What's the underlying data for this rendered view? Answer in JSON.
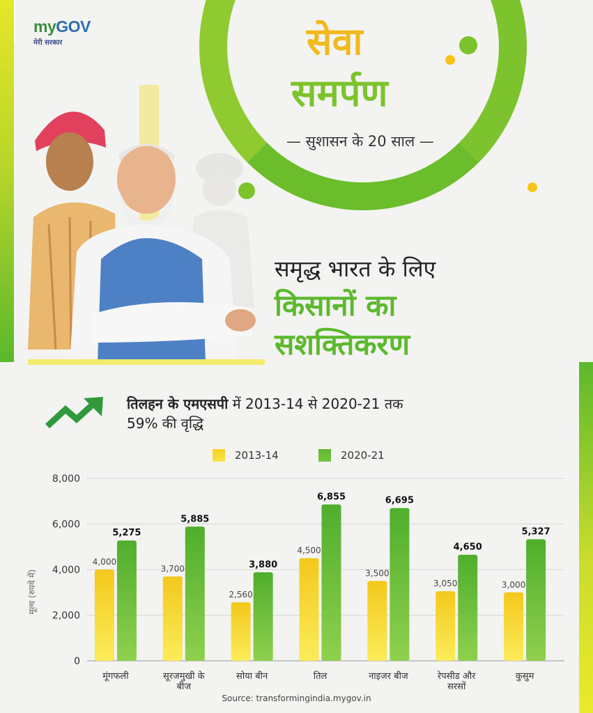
{
  "logo": {
    "my": "my",
    "gov": "GOV",
    "sub": "मेरी सरकार"
  },
  "hero": {
    "seva": "सेवा",
    "samarpan": "समर्पण",
    "tagline": "— सुशासन के 20 साल —"
  },
  "headline": {
    "line1": "समृद्ध भारत के लिए",
    "line2": "किसानों का",
    "line3": "सशक्तिकरण"
  },
  "stat": {
    "bold": "तिलहन के एमएसपी",
    "rest": " में 2013-14 से 2020-21 तक",
    "line2": "59% की वृद्धि"
  },
  "colors": {
    "green": "#7cc32e",
    "dark_green": "#5cb82c",
    "yellow": "#f6d223",
    "grid": "#d6d6d6"
  },
  "chart_data": {
    "type": "bar",
    "categories": [
      [
        "मूंगफली"
      ],
      [
        "सूरजमुखी के",
        "बीज"
      ],
      [
        "सोया बीन"
      ],
      [
        "तिल"
      ],
      [
        "नाइजर बीज"
      ],
      [
        "रेपसीड और",
        "सरसों"
      ],
      [
        "कुसुम"
      ]
    ],
    "series": [
      {
        "name": "2013-14",
        "values": [
          4000,
          3700,
          2560,
          4500,
          3500,
          3050,
          3000
        ],
        "labels": [
          "4,000",
          "3,700",
          "2,560",
          "4,500",
          "3,500",
          "3,050",
          "3,000"
        ]
      },
      {
        "name": "2020-21",
        "values": [
          5275,
          5885,
          3880,
          6855,
          6695,
          4650,
          5327
        ],
        "labels": [
          "5,275",
          "5,885",
          "3,880",
          "6,855",
          "6,695",
          "4,650",
          "5,327"
        ]
      }
    ],
    "ylabel": "मूल्य (रुपये में)",
    "ylim": [
      0,
      8000
    ],
    "yticks": [
      0,
      2000,
      4000,
      6000,
      8000
    ],
    "ytick_labels": [
      "0",
      "2,000",
      "4,000",
      "6,000",
      "8,000"
    ],
    "grid": true,
    "legend_position": "top-center"
  },
  "source": "Source: transformingindia.mygov.in"
}
